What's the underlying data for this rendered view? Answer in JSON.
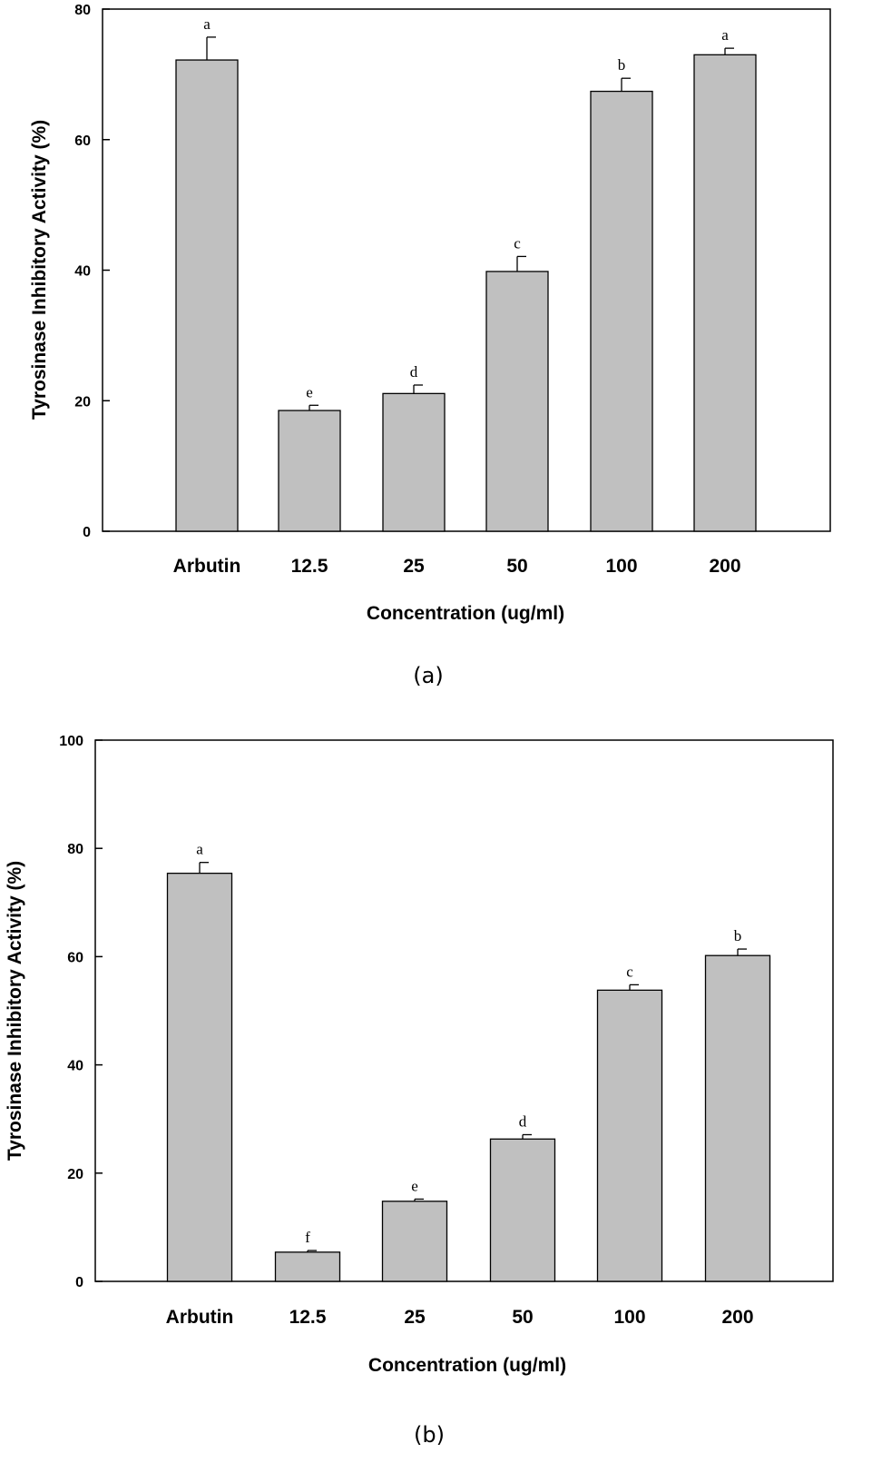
{
  "chart_data": [
    {
      "type": "bar",
      "panel_label": "(a)",
      "title": "",
      "xlabel": "Concentration (ug/ml)",
      "ylabel": "Tyrosinase Inhibitory Activity (%)",
      "ylim": [
        0,
        80
      ],
      "yticks": [
        "0",
        "20",
        "40",
        "60",
        "80"
      ],
      "categories": [
        "Arbutin",
        "12.5",
        "25",
        "50",
        "100",
        "200"
      ],
      "values": [
        72.2,
        18.5,
        21.1,
        39.8,
        67.4,
        73.0
      ],
      "errors": [
        3.5,
        0.8,
        1.3,
        2.3,
        2.0,
        1.0
      ],
      "significance": [
        "a",
        "e",
        "d",
        "c",
        "b",
        "a"
      ],
      "bar_color": "#c0c0c0",
      "grid": false
    },
    {
      "type": "bar",
      "panel_label": "(b)",
      "title": "",
      "xlabel": "Concentration (ug/ml)",
      "ylabel": "Tyrosinase Inhibitory Activity (%)",
      "ylim": [
        0,
        100
      ],
      "yticks": [
        "0",
        "20",
        "40",
        "60",
        "80",
        "100"
      ],
      "categories": [
        "Arbutin",
        "12.5",
        "25",
        "50",
        "100",
        "200"
      ],
      "values": [
        75.4,
        5.4,
        14.8,
        26.3,
        53.8,
        60.2
      ],
      "errors": [
        2.0,
        0.3,
        0.4,
        0.8,
        1.0,
        1.2
      ],
      "significance": [
        "a",
        "f",
        "e",
        "d",
        "c",
        "b"
      ],
      "bar_color": "#c0c0c0",
      "grid": false
    }
  ]
}
